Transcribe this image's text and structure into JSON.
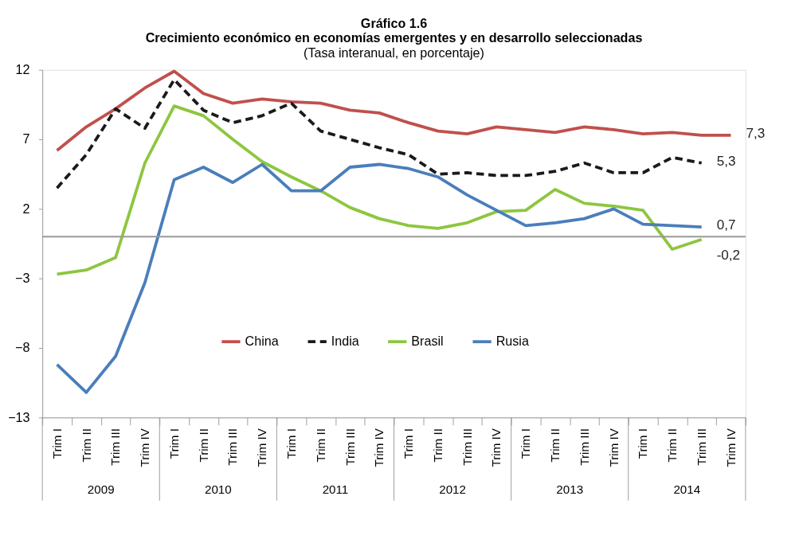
{
  "chart_data": {
    "type": "line",
    "title": "Gráfico 1.6\nCrecimiento económico en economías emergentes y en desarrollo seleccionadas",
    "subtitle": "(Tasa interanual, en porcentaje)",
    "categories": [
      "Trim I",
      "Trim II",
      "Trim III",
      "Trim IV",
      "Trim I",
      "Trim II",
      "Trim III",
      "Trim IV",
      "Trim I",
      "Trim II",
      "Trim III",
      "Trim IV",
      "Trim I",
      "Trim II",
      "Trim III",
      "Trim IV",
      "Trim I",
      "Trim II",
      "Trim III",
      "Trim IV",
      "Trim I",
      "Trim II",
      "Trim III",
      "Trim IV"
    ],
    "annotations": [
      "2009",
      "2010",
      "2011",
      "2012",
      "2013",
      "2014"
    ],
    "ylim": [
      -13,
      12
    ],
    "yticks": [
      12,
      7,
      2,
      -3,
      -8,
      -13
    ],
    "grid": false,
    "legend": "bottom",
    "marker": "none",
    "series": [
      {
        "name": "China",
        "color": "#c0504d",
        "line_style": "solid",
        "values": [
          6.2,
          7.9,
          9.2,
          10.7,
          11.9,
          10.3,
          9.6,
          9.9,
          9.7,
          9.6,
          9.1,
          8.9,
          8.2,
          7.6,
          7.4,
          7.9,
          7.7,
          7.5,
          7.9,
          7.7,
          7.4,
          7.5,
          7.3,
          7.3
        ],
        "value_labels": [
          null,
          null,
          null,
          null,
          null,
          null,
          null,
          null,
          null,
          null,
          null,
          null,
          null,
          null,
          null,
          null,
          null,
          null,
          null,
          null,
          null,
          null,
          null,
          "7,3"
        ]
      },
      {
        "name": "India",
        "color": "#1a1a1a",
        "line_style": "dashed",
        "values": [
          3.5,
          5.9,
          9.2,
          7.8,
          11.3,
          9.1,
          8.2,
          8.7,
          9.6,
          7.6,
          7.0,
          6.4,
          5.9,
          4.5,
          4.6,
          4.4,
          4.4,
          4.7,
          5.3,
          4.6,
          4.6,
          5.7,
          5.3,
          null
        ],
        "value_labels": [
          null,
          null,
          null,
          null,
          null,
          null,
          null,
          null,
          null,
          null,
          null,
          null,
          null,
          null,
          null,
          null,
          null,
          null,
          null,
          null,
          null,
          null,
          "5,3",
          null
        ]
      },
      {
        "name": "Brasil",
        "color": "#8dc63f",
        "line_style": "solid",
        "values": [
          -2.7,
          -2.4,
          -1.5,
          5.3,
          9.4,
          8.7,
          7.0,
          5.4,
          4.3,
          3.3,
          2.1,
          1.3,
          0.8,
          0.6,
          1.0,
          1.8,
          1.9,
          3.4,
          2.4,
          2.2,
          1.9,
          -0.9,
          -0.2,
          null
        ],
        "value_labels": [
          null,
          null,
          null,
          null,
          null,
          null,
          null,
          null,
          null,
          null,
          null,
          null,
          null,
          null,
          null,
          null,
          null,
          null,
          null,
          null,
          null,
          null,
          "-0,2",
          null
        ]
      },
      {
        "name": "Rusia",
        "color": "#4a7ebb",
        "line_style": "solid",
        "values": [
          -9.2,
          -11.2,
          -8.6,
          -3.3,
          4.1,
          5.0,
          3.9,
          5.2,
          3.3,
          3.3,
          5.0,
          5.2,
          4.9,
          4.3,
          3.0,
          1.9,
          0.8,
          1.0,
          1.3,
          2.0,
          0.9,
          0.8,
          0.7,
          null
        ],
        "value_labels": [
          null,
          null,
          null,
          null,
          null,
          null,
          null,
          null,
          null,
          null,
          null,
          null,
          null,
          null,
          null,
          null,
          null,
          null,
          null,
          null,
          null,
          null,
          "0,7",
          null
        ]
      }
    ]
  }
}
